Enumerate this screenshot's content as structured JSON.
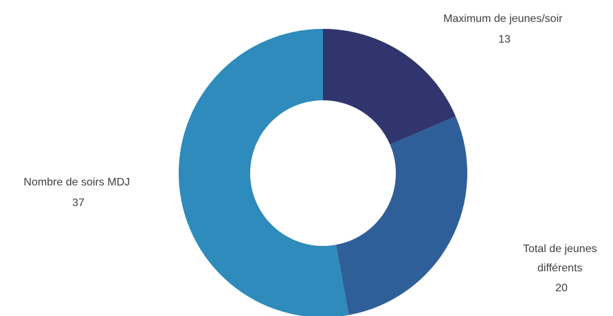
{
  "chart_data": {
    "type": "pie",
    "variant": "donut",
    "title": "",
    "legend": "none",
    "slices": [
      {
        "name": "Maximum de jeunes/soir",
        "value": 13,
        "color": "#31356e"
      },
      {
        "name": "Total de jeunes différents",
        "value": 20,
        "color": "#2f5f98"
      },
      {
        "name": "Nombre de soirs MDJ",
        "value": 37,
        "color": "#2e8bbb"
      }
    ],
    "label_lines": [
      [
        "Maximum de jeunes/soir",
        "13"
      ],
      [
        "Total de jeunes",
        "différents",
        "20"
      ],
      [
        "Nombre de soirs MDJ",
        "37"
      ]
    ],
    "values_text": [
      "13",
      "20",
      "37"
    ]
  }
}
